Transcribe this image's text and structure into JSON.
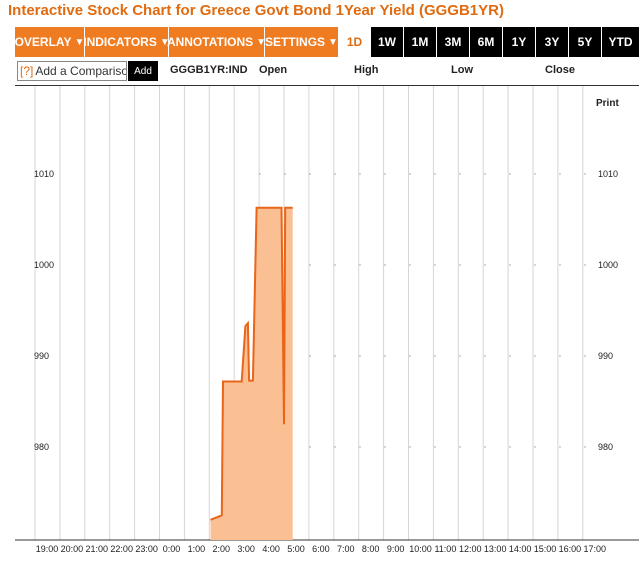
{
  "title": "Interactive Stock Chart for Greece Govt Bond 1Year Yield (GGGB1YR)",
  "toolbar": {
    "menus": [
      {
        "label": "OVERLAY"
      },
      {
        "label": "INDICATORS"
      },
      {
        "label": "ANNOTATIONS"
      },
      {
        "label": "SETTINGS"
      }
    ],
    "ranges": [
      "1D",
      "1W",
      "1M",
      "3M",
      "6M",
      "1Y",
      "3Y",
      "5Y",
      "YTD"
    ],
    "active_range": "1D"
  },
  "compare": {
    "q": "[?]",
    "placeholder": "Add a Comparison",
    "add_label": "Add"
  },
  "quote": {
    "ticker": "GGGB1YR:IND",
    "open_label": "Open",
    "high_label": "High",
    "low_label": "Low",
    "close_label": "Close"
  },
  "print_label": "Print",
  "colors": {
    "accent": "#f07c21",
    "title": "#e06b10",
    "line": "#e8651a",
    "fill": "#fbbf94"
  },
  "chart_data": {
    "type": "area",
    "x_ticks": [
      "19:00",
      "20:00",
      "21:00",
      "22:00",
      "23:00",
      "0:00",
      "1:00",
      "2:00",
      "3:00",
      "4:00",
      "5:00",
      "6:00",
      "7:00",
      "8:00",
      "9:00",
      "10:00",
      "11:00",
      "12:00",
      "13:00",
      "14:00",
      "15:00",
      "16:00",
      "17:00"
    ],
    "y_ticks": [
      "1010",
      "1000",
      "990",
      "980"
    ],
    "ylim": [
      970,
      1017
    ],
    "series": [
      {
        "x": [
          2.05,
          2.5,
          2.55,
          3.3,
          3.45,
          3.55,
          3.6,
          3.75,
          3.9,
          4.05,
          4.5,
          4.9,
          5.0,
          5.05,
          5.15,
          5.35
        ],
        "y": [
          972.0,
          972.5,
          987.2,
          987.2,
          993.3,
          993.6,
          987.3,
          987.3,
          1006.3,
          1006.3,
          1006.3,
          1006.3,
          982.5,
          1006.3,
          1006.3,
          1006.3
        ]
      }
    ]
  }
}
